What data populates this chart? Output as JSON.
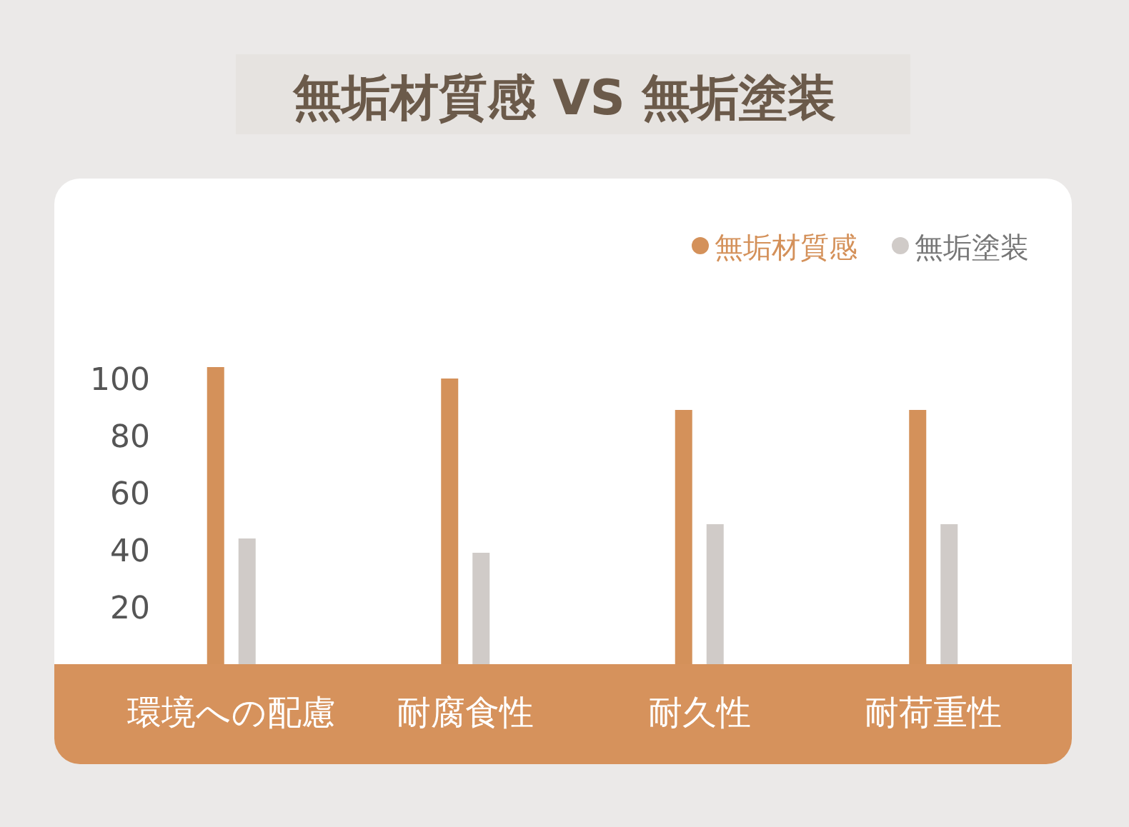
{
  "chart_data": {
    "type": "bar",
    "title": "無垢材質感 VS 無垢塗装",
    "categories": [
      "環境への配慮",
      "耐腐食性",
      "耐久性",
      "耐荷重性"
    ],
    "series": [
      {
        "name": "無垢材質感",
        "color": "#d4915a",
        "values": [
          104,
          100,
          89,
          89
        ]
      },
      {
        "name": "無垢塗装",
        "color": "#d0cbc8",
        "values": [
          44,
          39,
          49,
          49
        ]
      }
    ],
    "ylim": [
      -35,
      170
    ],
    "yticks": [
      20,
      40,
      60,
      80,
      100
    ],
    "legend": "top right",
    "grid": false
  }
}
